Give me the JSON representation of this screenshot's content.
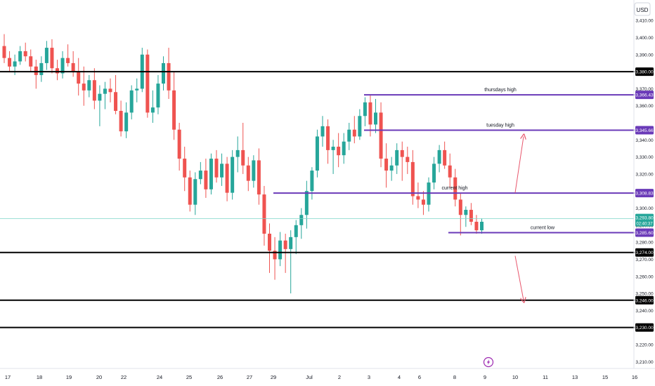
{
  "currency_label": "USD",
  "colors": {
    "up": "#26a69a",
    "down": "#ef5350",
    "support": "#000000",
    "resistance": "#6a3ab8",
    "arrow": "#e8566c",
    "price_line": "#7fd6c8"
  },
  "icon": "lightning-icon",
  "chart_data": {
    "type": "candlestick",
    "title": "",
    "ylim": [
      3206,
      3422
    ],
    "y_ticks": [
      "3,410.00",
      "3,400.00",
      "3,390.00",
      "3,370.00",
      "3,360.00",
      "3,340.00",
      "3,330.00",
      "3,320.00",
      "3,310.00",
      "3,300.00",
      "3,290.00",
      "3,280.00",
      "3,270.00",
      "3,260.00",
      "3,250.00",
      "3,240.00",
      "3,220.00",
      "3,210.00"
    ],
    "y_tick_values": [
      3410,
      3400,
      3390,
      3370,
      3360,
      3340,
      3330,
      3320,
      3310,
      3300,
      3290,
      3280,
      3270,
      3260,
      3250,
      3240,
      3220,
      3210
    ],
    "x_ticks": [
      "17",
      "18",
      "19",
      "20",
      "22",
      "24",
      "25",
      "26",
      "27",
      "29",
      "Jul",
      "2",
      "3",
      "4",
      "6",
      "8",
      "9",
      "10",
      "11",
      "13",
      "15",
      "16"
    ],
    "candles": [
      [
        3395,
        3402,
        3385,
        3388
      ],
      [
        3388,
        3392,
        3380,
        3383
      ],
      [
        3383,
        3390,
        3378,
        3386
      ],
      [
        3386,
        3395,
        3384,
        3392
      ],
      [
        3392,
        3397,
        3386,
        3389
      ],
      [
        3389,
        3393,
        3380,
        3383
      ],
      [
        3383,
        3387,
        3370,
        3378
      ],
      [
        3378,
        3389,
        3374,
        3385
      ],
      [
        3385,
        3398,
        3381,
        3394
      ],
      [
        3394,
        3399,
        3379,
        3382
      ],
      [
        3382,
        3387,
        3375,
        3379
      ],
      [
        3379,
        3392,
        3376,
        3388
      ],
      [
        3388,
        3396,
        3383,
        3385
      ],
      [
        3385,
        3392,
        3377,
        3380
      ],
      [
        3380,
        3388,
        3366,
        3373
      ],
      [
        3373,
        3383,
        3360,
        3369
      ],
      [
        3369,
        3378,
        3365,
        3375
      ],
      [
        3375,
        3382,
        3358,
        3363
      ],
      [
        3363,
        3372,
        3348,
        3367
      ],
      [
        3367,
        3374,
        3358,
        3370
      ],
      [
        3370,
        3376,
        3362,
        3368
      ],
      [
        3368,
        3378,
        3355,
        3357
      ],
      [
        3357,
        3363,
        3342,
        3345
      ],
      [
        3345,
        3362,
        3341,
        3356
      ],
      [
        3356,
        3372,
        3352,
        3369
      ],
      [
        3369,
        3376,
        3362,
        3370
      ],
      [
        3370,
        3394,
        3368,
        3390
      ],
      [
        3390,
        3393,
        3353,
        3356
      ],
      [
        3356,
        3369,
        3350,
        3359
      ],
      [
        3359,
        3378,
        3355,
        3373
      ],
      [
        3373,
        3389,
        3369,
        3385
      ],
      [
        3385,
        3394,
        3364,
        3369
      ],
      [
        3369,
        3380,
        3340,
        3346
      ],
      [
        3346,
        3350,
        3322,
        3329
      ],
      [
        3329,
        3336,
        3310,
        3318
      ],
      [
        3318,
        3322,
        3298,
        3302
      ],
      [
        3302,
        3321,
        3296,
        3317
      ],
      [
        3317,
        3327,
        3314,
        3322
      ],
      [
        3322,
        3329,
        3306,
        3311
      ],
      [
        3311,
        3332,
        3308,
        3329
      ],
      [
        3329,
        3334,
        3315,
        3318
      ],
      [
        3318,
        3332,
        3313,
        3326
      ],
      [
        3326,
        3330,
        3304,
        3309
      ],
      [
        3309,
        3334,
        3305,
        3330
      ],
      [
        3330,
        3342,
        3321,
        3334
      ],
      [
        3334,
        3350,
        3320,
        3325
      ],
      [
        3325,
        3330,
        3310,
        3316
      ],
      [
        3316,
        3331,
        3312,
        3328
      ],
      [
        3328,
        3335,
        3302,
        3308
      ],
      [
        3308,
        3313,
        3278,
        3285
      ],
      [
        3285,
        3291,
        3262,
        3275
      ],
      [
        3275,
        3283,
        3258,
        3270
      ],
      [
        3270,
        3286,
        3266,
        3281
      ],
      [
        3281,
        3285,
        3262,
        3276
      ],
      [
        3276,
        3287,
        3250,
        3283
      ],
      [
        3283,
        3293,
        3273,
        3290
      ],
      [
        3290,
        3300,
        3282,
        3296
      ],
      [
        3296,
        3316,
        3288,
        3310
      ],
      [
        3310,
        3324,
        3305,
        3322
      ],
      [
        3322,
        3346,
        3318,
        3342
      ],
      [
        3342,
        3354,
        3336,
        3348
      ],
      [
        3348,
        3352,
        3326,
        3334
      ],
      [
        3334,
        3340,
        3320,
        3336
      ],
      [
        3336,
        3344,
        3324,
        3331
      ],
      [
        3331,
        3344,
        3326,
        3339
      ],
      [
        3339,
        3350,
        3334,
        3346
      ],
      [
        3346,
        3354,
        3338,
        3342
      ],
      [
        3342,
        3358,
        3340,
        3354
      ],
      [
        3354,
        3365,
        3348,
        3362
      ],
      [
        3362,
        3366,
        3342,
        3349
      ],
      [
        3349,
        3364,
        3344,
        3356
      ],
      [
        3356,
        3362,
        3324,
        3329
      ],
      [
        3329,
        3338,
        3312,
        3322
      ],
      [
        3322,
        3330,
        3316,
        3325
      ],
      [
        3325,
        3338,
        3320,
        3334
      ],
      [
        3334,
        3339,
        3316,
        3330
      ],
      [
        3330,
        3336,
        3320,
        3327
      ],
      [
        3327,
        3334,
        3302,
        3307
      ],
      [
        3307,
        3315,
        3300,
        3305
      ],
      [
        3305,
        3310,
        3296,
        3302
      ],
      [
        3302,
        3318,
        3298,
        3315
      ],
      [
        3315,
        3330,
        3311,
        3326
      ],
      [
        3326,
        3337,
        3321,
        3334
      ],
      [
        3334,
        3339,
        3323,
        3325
      ],
      [
        3325,
        3332,
        3312,
        3318
      ],
      [
        3318,
        3323,
        3301,
        3305
      ],
      [
        3305,
        3309,
        3284,
        3296
      ],
      [
        3296,
        3301,
        3289,
        3299
      ],
      [
        3299,
        3303,
        3290,
        3292
      ],
      [
        3292,
        3296,
        3285,
        3287
      ],
      [
        3287,
        3294,
        3285,
        3292
      ]
    ],
    "levels": [
      {
        "value": 3380.0,
        "label": "3,380.00",
        "kind": "support"
      },
      {
        "value": 3274.0,
        "label": "3,274.00",
        "kind": "support"
      },
      {
        "value": 3246.0,
        "label": "3,246.00",
        "kind": "support"
      },
      {
        "value": 3230.0,
        "label": "3,230.00",
        "kind": "support"
      },
      {
        "value": 3366.43,
        "label": "3,366.43",
        "kind": "resistance",
        "text": "thursdays high"
      },
      {
        "value": 3345.66,
        "label": "3,345.66",
        "kind": "resistance",
        "text": "tuesday high"
      },
      {
        "value": 3308.83,
        "label": "3,308.83",
        "kind": "resistance",
        "text": "current high"
      },
      {
        "value": 3285.6,
        "label": "3,285.60",
        "kind": "resistance",
        "text": "current low"
      }
    ],
    "last_price": {
      "value": 3293.8,
      "label": "3,293.80",
      "countdown": "02:40:37"
    },
    "arrows": [
      {
        "from": 3309,
        "to": 3342
      },
      {
        "from": 3272,
        "to": 3246
      }
    ]
  }
}
